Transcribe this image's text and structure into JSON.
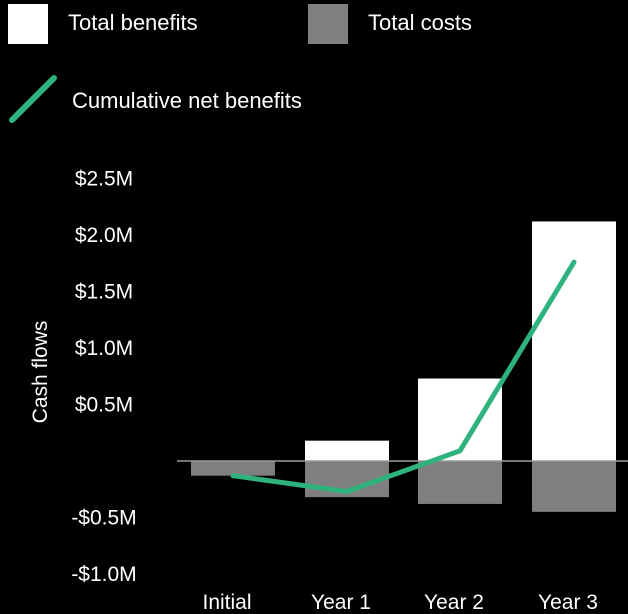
{
  "chart_data": {
    "type": "bar",
    "categories": [
      "Initial",
      "Year 1",
      "Year 2",
      "Year 3"
    ],
    "series": [
      {
        "name": "Total benefits",
        "type": "bar",
        "color": "#ffffff",
        "values": [
          0,
          0.18,
          0.73,
          2.12
        ]
      },
      {
        "name": "Total costs",
        "type": "bar",
        "color": "#7f7f7f",
        "values": [
          -0.13,
          -0.32,
          -0.38,
          -0.45
        ]
      },
      {
        "name": "Cumulative net benefits",
        "type": "line",
        "color": "#2fb37e",
        "values": [
          -0.13,
          -0.27,
          0.09,
          1.76
        ]
      }
    ],
    "ylabel": "Cash flows",
    "ylim": [
      -1.0,
      2.5
    ],
    "yticks": [
      2.5,
      2.0,
      1.5,
      1.0,
      0.5,
      -0.5,
      -1.0
    ],
    "ytick_labels": [
      "$2.5M",
      "$2.0M",
      "$1.5M",
      "$1.0M",
      "$0.5M",
      "-$0.5M",
      "-$1.0M"
    ],
    "grid": false,
    "legend_position": "top-left"
  }
}
